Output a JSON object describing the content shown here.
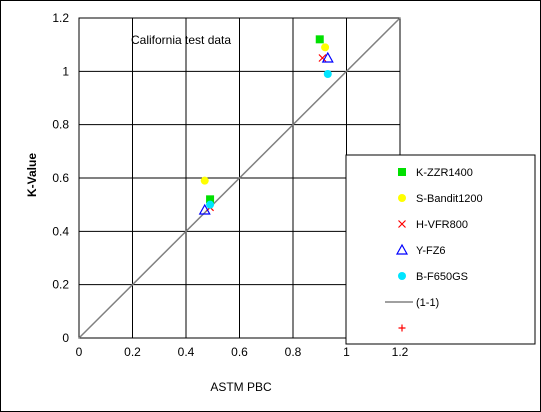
{
  "chart_data": {
    "type": "scatter",
    "title": "",
    "annotation": "California test data",
    "xlabel": "ASTM PBC",
    "ylabel": "K-Value",
    "xlim": [
      0,
      1.2
    ],
    "ylim": [
      0,
      1.2
    ],
    "xticks": [
      "0",
      "0.2",
      "0.4",
      "0.6",
      "0.8",
      "1",
      "1.2"
    ],
    "yticks": [
      "0",
      "0.2",
      "0.4",
      "0.6",
      "0.8",
      "1",
      "1.2"
    ],
    "grid": true,
    "legend_position": "right",
    "series": [
      {
        "name": "K-ZZR1400",
        "marker": "square",
        "color": "#00e000",
        "points": [
          [
            0.49,
            0.52
          ],
          [
            0.9,
            1.12
          ]
        ]
      },
      {
        "name": "S-Bandit1200",
        "marker": "circle",
        "color": "#ffff00",
        "points": [
          [
            0.47,
            0.59
          ],
          [
            0.92,
            1.09
          ]
        ]
      },
      {
        "name": "H-VFR800",
        "marker": "x",
        "color": "#ff0000",
        "points": [
          [
            0.49,
            0.49
          ],
          [
            0.91,
            1.05
          ]
        ]
      },
      {
        "name": "Y-FZ6",
        "marker": "triangle",
        "color": "#0000ff",
        "points": [
          [
            0.47,
            0.48
          ],
          [
            0.93,
            1.05
          ]
        ]
      },
      {
        "name": "B-F650GS",
        "marker": "circle",
        "color": "#00e5ff",
        "points": [
          [
            0.49,
            0.5
          ],
          [
            0.93,
            0.99
          ]
        ]
      }
    ],
    "reference_line": {
      "name": "(1-1)",
      "color": "#808080",
      "from": [
        0,
        0
      ],
      "to": [
        1.2,
        1.2
      ]
    },
    "extra_legend_marker": {
      "marker": "plus",
      "color": "#ff0000",
      "name": ""
    }
  }
}
